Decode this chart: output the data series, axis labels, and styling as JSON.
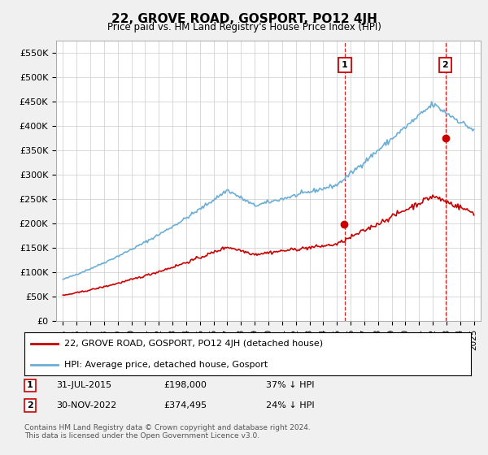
{
  "title": "22, GROVE ROAD, GOSPORT, PO12 4JH",
  "subtitle": "Price paid vs. HM Land Registry's House Price Index (HPI)",
  "ylim": [
    0,
    575000
  ],
  "yticks": [
    0,
    50000,
    100000,
    150000,
    200000,
    250000,
    300000,
    350000,
    400000,
    450000,
    500000,
    550000
  ],
  "hpi_color": "#6baed6",
  "price_color": "#cc0000",
  "grid_color": "#cccccc",
  "bg_color": "#f0f0f0",
  "plot_bg_color": "#ffffff",
  "transaction1_price": 198000,
  "transaction2_price": 374495,
  "legend1": "22, GROVE ROAD, GOSPORT, PO12 4JH (detached house)",
  "legend2": "HPI: Average price, detached house, Gosport",
  "note1_date": "31-JUL-2015",
  "note1_price": "£198,000",
  "note1_pct": "37% ↓ HPI",
  "note2_date": "30-NOV-2022",
  "note2_price": "£374,495",
  "note2_pct": "24% ↓ HPI",
  "copyright": "Contains HM Land Registry data © Crown copyright and database right 2024.\nThis data is licensed under the Open Government Licence v3.0.",
  "x_start_year": 1995,
  "x_end_year": 2025
}
